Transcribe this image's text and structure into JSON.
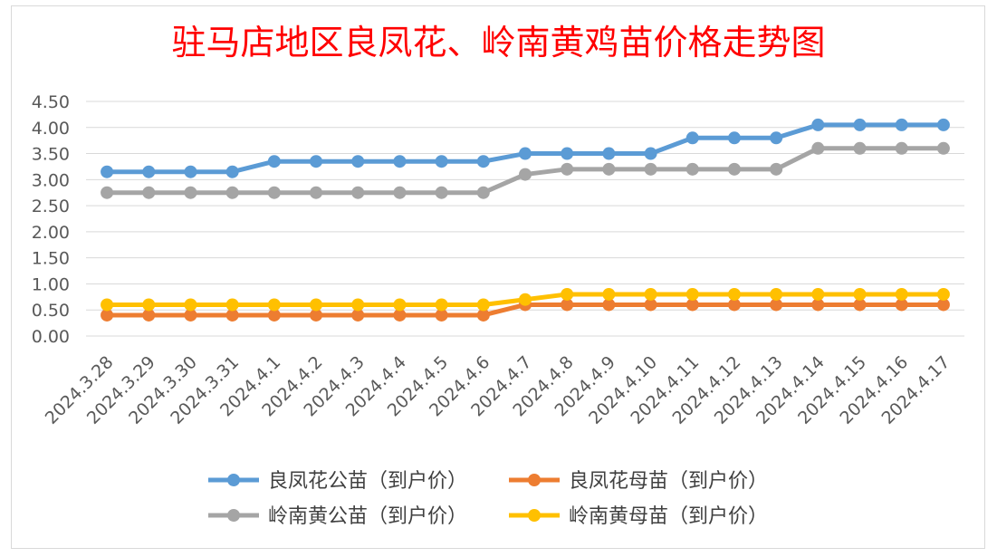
{
  "chart_data": {
    "type": "line",
    "title": "驻马店地区良凤花、岭南黄鸡苗价格走势图",
    "xlabel": "",
    "ylabel": "",
    "ylim": [
      0,
      4.5
    ],
    "yticks": [
      "0.00",
      "0.50",
      "1.00",
      "1.50",
      "2.00",
      "2.50",
      "3.00",
      "3.50",
      "4.00",
      "4.50"
    ],
    "grid": true,
    "legend_position": "bottom",
    "x": [
      "2024.3.28",
      "2024.3.29",
      "2024.3.30",
      "2024.3.31",
      "2024.4.1",
      "2024.4.2",
      "2024.4.3",
      "2024.4.4",
      "2024.4.5",
      "2024.4.6",
      "2024.4.7",
      "2024.4.8",
      "2024.4.9",
      "2024.4.10",
      "2024.4.11",
      "2024.4.12",
      "2024.4.13",
      "2024.4.14",
      "2024.4.15",
      "2024.4.16",
      "2024.4.17"
    ],
    "series": [
      {
        "name": "良凤花公苗（到户价）",
        "color": "#5b9bd5",
        "values": [
          3.15,
          3.15,
          3.15,
          3.15,
          3.35,
          3.35,
          3.35,
          3.35,
          3.35,
          3.35,
          3.5,
          3.5,
          3.5,
          3.5,
          3.8,
          3.8,
          3.8,
          4.05,
          4.05,
          4.05,
          4.05
        ]
      },
      {
        "name": "良凤花母苗（到户价）",
        "color": "#ed7d31",
        "values": [
          0.4,
          0.4,
          0.4,
          0.4,
          0.4,
          0.4,
          0.4,
          0.4,
          0.4,
          0.4,
          0.6,
          0.6,
          0.6,
          0.6,
          0.6,
          0.6,
          0.6,
          0.6,
          0.6,
          0.6,
          0.6
        ]
      },
      {
        "name": "岭南黄公苗（到户价）",
        "color": "#a5a5a5",
        "values": [
          2.75,
          2.75,
          2.75,
          2.75,
          2.75,
          2.75,
          2.75,
          2.75,
          2.75,
          2.75,
          3.1,
          3.2,
          3.2,
          3.2,
          3.2,
          3.2,
          3.2,
          3.6,
          3.6,
          3.6,
          3.6
        ]
      },
      {
        "name": "岭南黄母苗（到户价）",
        "color": "#ffc000",
        "values": [
          0.6,
          0.6,
          0.6,
          0.6,
          0.6,
          0.6,
          0.6,
          0.6,
          0.6,
          0.6,
          0.7,
          0.8,
          0.8,
          0.8,
          0.8,
          0.8,
          0.8,
          0.8,
          0.8,
          0.8,
          0.8
        ]
      }
    ]
  }
}
